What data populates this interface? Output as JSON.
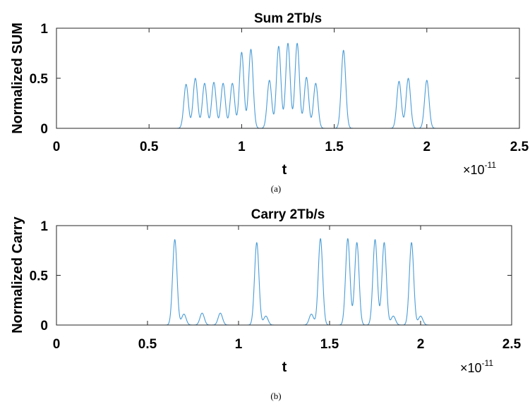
{
  "chart_data": [
    {
      "type": "line",
      "title": "Sum  2Tb/s",
      "xlabel": "t",
      "ylabel": "Normalized SUM",
      "x_exponent": "×10",
      "x_exponent_power": "-11",
      "xlim": [
        0,
        2.5
      ],
      "ylim": [
        0,
        1
      ],
      "xticks": [
        "0",
        "0.5",
        "1",
        "1.5",
        "2",
        "2.5"
      ],
      "yticks": [
        "0",
        "0.5",
        "1"
      ],
      "series_color": "#4a9cd6",
      "pulse_width": 0.012,
      "series": [
        {
          "peaks_x": [
            0.7,
            0.75,
            0.8,
            0.85,
            0.9,
            0.95,
            1.0,
            1.05,
            1.15,
            1.2,
            1.25,
            1.3,
            1.35,
            1.4,
            1.55,
            1.85,
            1.9,
            2.0
          ],
          "peaks_y": [
            0.44,
            0.5,
            0.45,
            0.46,
            0.45,
            0.45,
            0.76,
            0.79,
            0.48,
            0.82,
            0.85,
            0.85,
            0.51,
            0.45,
            0.78,
            0.47,
            0.5,
            0.48
          ]
        }
      ],
      "caption": "(a)"
    },
    {
      "type": "line",
      "title": "Carry  2Tb/s",
      "xlabel": "t",
      "ylabel": "Normalized Carry",
      "x_exponent": "×10",
      "x_exponent_power": "-11",
      "xlim": [
        0,
        2.5
      ],
      "ylim": [
        0,
        1
      ],
      "xticks": [
        "0",
        "0.5",
        "1",
        "1.5",
        "2",
        "2.5"
      ],
      "yticks": [
        "0",
        "0.5",
        "1"
      ],
      "series_color": "#4a9cd6",
      "pulse_width": 0.012,
      "series": [
        {
          "peaks_x": [
            0.65,
            0.7,
            0.8,
            0.9,
            1.1,
            1.15,
            1.4,
            1.45,
            1.6,
            1.65,
            1.75,
            1.8,
            1.85,
            1.95,
            2.0
          ],
          "peaks_y": [
            0.86,
            0.11,
            0.12,
            0.12,
            0.83,
            0.09,
            0.11,
            0.87,
            0.87,
            0.83,
            0.86,
            0.83,
            0.09,
            0.83,
            0.09
          ]
        }
      ],
      "caption": "(b)"
    }
  ]
}
